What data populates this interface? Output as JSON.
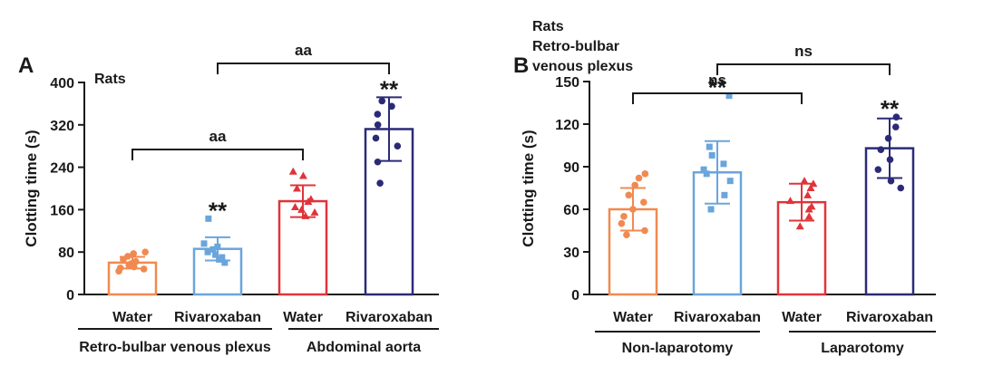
{
  "chart_data": [
    {
      "panel": "A",
      "type": "bar",
      "annotation": "Rats",
      "ylabel": "Clotting  time (s)",
      "ylim": [
        0,
        400
      ],
      "yticks": [
        "0",
        "80",
        "160",
        "240",
        "320",
        "400"
      ],
      "categories": [
        "Water",
        "Rivaroxaban",
        "Water",
        "Rivaroxaban"
      ],
      "groups": [
        {
          "label": "Retro-bulbar venous plexus",
          "categories": [
            0,
            1
          ]
        },
        {
          "label": "Abdominal aorta",
          "categories": [
            2,
            3
          ]
        }
      ],
      "colors": [
        "#f08a50",
        "#6aa5dc",
        "#e0343a",
        "#2b2a78"
      ],
      "values": [
        60,
        86,
        176,
        312
      ],
      "error": [
        11,
        22,
        30,
        60
      ],
      "points": [
        [
          44,
          48,
          50,
          52,
          55,
          58,
          62,
          66,
          72,
          77,
          80
        ],
        [
          60,
          66,
          70,
          75,
          80,
          85,
          90,
          96,
          143
        ],
        [
          148,
          155,
          160,
          165,
          175,
          180,
          200,
          224,
          232
        ],
        [
          210,
          250,
          280,
          295,
          320,
          340,
          355,
          365
        ]
      ],
      "stars": [
        "",
        "**",
        "",
        "**"
      ],
      "brackets": [
        {
          "from": 0,
          "to": 2,
          "label": "aa"
        },
        {
          "from": 1,
          "to": 3,
          "label": "aa"
        }
      ]
    },
    {
      "panel": "B",
      "type": "bar",
      "annotation": "Rats\nRetro-bulbar\nvenous plexus",
      "ylabel": "Clotting  time (s)",
      "ylim": [
        0,
        150
      ],
      "yticks": [
        "0",
        "30",
        "60",
        "90",
        "120",
        "150"
      ],
      "categories": [
        "Water",
        "Rivaroxaban",
        "Water",
        "Rivaroxaban"
      ],
      "groups": [
        {
          "label": "Non-laparotomy",
          "categories": [
            0,
            1
          ]
        },
        {
          "label": "Laparotomy",
          "categories": [
            2,
            3
          ]
        }
      ],
      "colors": [
        "#f08a50",
        "#6aa5dc",
        "#e0343a",
        "#2b2a78"
      ],
      "values": [
        60,
        86,
        65,
        103
      ],
      "error": [
        15,
        22,
        13,
        21
      ],
      "points": [
        [
          42,
          45,
          50,
          55,
          60,
          65,
          70,
          77,
          82,
          85
        ],
        [
          60,
          70,
          80,
          85,
          88,
          92,
          98,
          104,
          140
        ],
        [
          48,
          55,
          60,
          62,
          66,
          70,
          75,
          78,
          80
        ],
        [
          75,
          80,
          88,
          95,
          102,
          110,
          118,
          125
        ]
      ],
      "stars": [
        "",
        "**",
        "",
        "**"
      ],
      "brackets": [
        {
          "from": 0,
          "to": 2,
          "label": "ns"
        },
        {
          "from": 1,
          "to": 3,
          "label": "ns"
        }
      ]
    }
  ],
  "panel_labels": [
    "A",
    "B"
  ]
}
